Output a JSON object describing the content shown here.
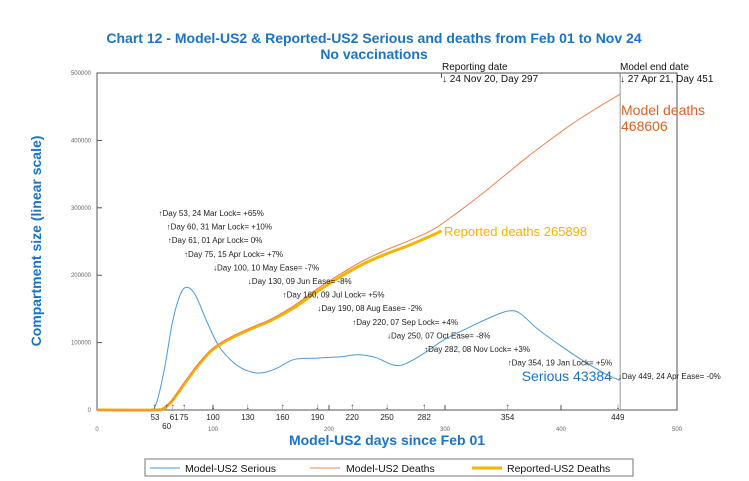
{
  "chart_data": {
    "type": "line",
    "title": "Chart 12 - Model-US2 & Reported-US2 Serious and deaths from Feb 01 to Nov 24",
    "subtitle": "No vaccinations",
    "xlabel": "Model-US2 days since Feb 01",
    "ylabel": "Compartment size (linear scale)",
    "xlim": [
      0,
      500
    ],
    "ylim": [
      0,
      500000
    ],
    "xticks": [
      0,
      100,
      200,
      300,
      400,
      500
    ],
    "yticks": [
      0,
      100000,
      200000,
      300000,
      400000,
      500000
    ],
    "grid": false,
    "legend_placement": "bottom",
    "colors": {
      "serious": "#4a9ad8",
      "model_deaths": "#f08050",
      "reported_deaths": "#f4b400",
      "title": "#1874c8",
      "model_deaths_label": "#e06020"
    },
    "series": [
      {
        "name": "Model-US2 Serious",
        "points": [
          [
            0,
            0
          ],
          [
            40,
            0
          ],
          [
            50,
            5000
          ],
          [
            58,
            60000
          ],
          [
            65,
            130000
          ],
          [
            72,
            172000
          ],
          [
            78,
            182000
          ],
          [
            85,
            170000
          ],
          [
            95,
            130000
          ],
          [
            105,
            95000
          ],
          [
            118,
            70000
          ],
          [
            130,
            58000
          ],
          [
            142,
            55000
          ],
          [
            155,
            62000
          ],
          [
            170,
            75000
          ],
          [
            190,
            77000
          ],
          [
            210,
            79000
          ],
          [
            225,
            82000
          ],
          [
            240,
            78000
          ],
          [
            255,
            67000
          ],
          [
            265,
            68000
          ],
          [
            280,
            82000
          ],
          [
            300,
            105000
          ],
          [
            320,
            122000
          ],
          [
            340,
            138000
          ],
          [
            355,
            147000
          ],
          [
            365,
            143000
          ],
          [
            380,
            120000
          ],
          [
            400,
            95000
          ],
          [
            420,
            72000
          ],
          [
            440,
            52000
          ],
          [
            451,
            44000
          ]
        ]
      },
      {
        "name": "Model-US2 Deaths",
        "points": [
          [
            0,
            0
          ],
          [
            50,
            0
          ],
          [
            58,
            4000
          ],
          [
            65,
            15000
          ],
          [
            75,
            40000
          ],
          [
            88,
            70000
          ],
          [
            100,
            92000
          ],
          [
            115,
            108000
          ],
          [
            135,
            124000
          ],
          [
            150,
            135000
          ],
          [
            170,
            155000
          ],
          [
            190,
            180000
          ],
          [
            210,
            202000
          ],
          [
            230,
            222000
          ],
          [
            250,
            238000
          ],
          [
            270,
            252000
          ],
          [
            290,
            268000
          ],
          [
            310,
            292000
          ],
          [
            330,
            318000
          ],
          [
            350,
            346000
          ],
          [
            370,
            374000
          ],
          [
            390,
            400000
          ],
          [
            410,
            425000
          ],
          [
            430,
            447000
          ],
          [
            451,
            468606
          ]
        ]
      },
      {
        "name": "Reported-US2 Deaths",
        "points": [
          [
            0,
            0
          ],
          [
            50,
            0
          ],
          [
            58,
            3000
          ],
          [
            65,
            14000
          ],
          [
            75,
            38000
          ],
          [
            88,
            68000
          ],
          [
            100,
            90000
          ],
          [
            115,
            106000
          ],
          [
            135,
            122000
          ],
          [
            150,
            133000
          ],
          [
            170,
            152000
          ],
          [
            190,
            176000
          ],
          [
            210,
            198000
          ],
          [
            230,
            217000
          ],
          [
            250,
            232000
          ],
          [
            270,
            245000
          ],
          [
            290,
            260000
          ],
          [
            297,
            265898
          ]
        ]
      }
    ],
    "annotations": {
      "reporting_date": {
        "label": "Reporting date",
        "value": "↓ 24 Nov 20, Day 297",
        "day": 297
      },
      "model_end_date": {
        "label": "Model end date",
        "value": "↓ 27 Apr 21, Day 451",
        "day": 451
      },
      "model_deaths": {
        "label": "Model deaths",
        "value": "468606"
      },
      "reported_deaths": "Reported deaths 265898",
      "serious": "Serious 43384"
    },
    "events": [
      {
        "day": 53,
        "text": "↑Day 53, 24 Mar Lock= +65%",
        "tick": "53",
        "dir": "↑"
      },
      {
        "day": 60,
        "text": "↑Day 60, 31 Mar Lock= +10%",
        "tick": "60",
        "dir": "↑"
      },
      {
        "day": 61,
        "text": "↑Day 61, 01 Apr Lock= 0%",
        "tick": "61",
        "dir": "↑"
      },
      {
        "day": 75,
        "text": "↑Day 75, 15 Apr Lock= +7%",
        "tick": "75",
        "dir": "↑"
      },
      {
        "day": 100,
        "text": "↓Day 100, 10 May Ease= -7%",
        "tick": "100",
        "dir": "↓"
      },
      {
        "day": 130,
        "text": "↓Day 130, 09 Jun Ease= -8%",
        "tick": "130",
        "dir": "↓"
      },
      {
        "day": 160,
        "text": "↑Day 160, 09 Jul Lock= +5%",
        "tick": "160",
        "dir": "↑"
      },
      {
        "day": 190,
        "text": "↓Day 190, 08 Aug Ease= -2%",
        "tick": "190",
        "dir": "↓"
      },
      {
        "day": 220,
        "text": "↑Day 220, 07 Sep Lock= +4%",
        "tick": "220",
        "dir": "↑"
      },
      {
        "day": 250,
        "text": "↓Day 250, 07 Oct Ease= -8%",
        "tick": "250",
        "dir": "↓"
      },
      {
        "day": 282,
        "text": "↑Day 282, 08 Nov Lock= +3%",
        "tick": "282",
        "dir": "↑"
      },
      {
        "day": 354,
        "text": "↑Day 354, 19 Jan Lock= +5%",
        "tick": "354",
        "dir": "↑"
      },
      {
        "day": 449,
        "text": "↓Day 449, 24 Apr Ease= -0%",
        "tick": "449",
        "dir": "↓"
      }
    ]
  }
}
